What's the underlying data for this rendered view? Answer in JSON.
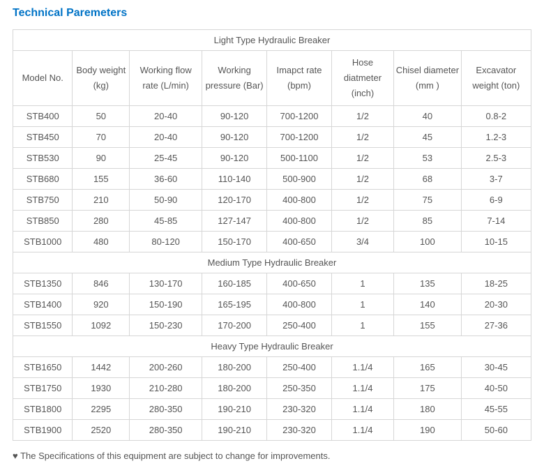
{
  "title": {
    "text": "Technical Paremeters",
    "color": "#0073c6"
  },
  "headers": [
    "Model No.",
    "Body weight (kg)",
    "Working flow rate (L/min)",
    "Working pressure (Bar)",
    "Imapct rate (bpm)",
    "Hose diatmeter (inch)",
    "Chisel diameter (mm )",
    "Excavator weight (ton)"
  ],
  "sections": [
    {
      "label": "Light Type Hydraulic Breaker",
      "rows": [
        [
          "STB400",
          "50",
          "20-40",
          "90-120",
          "700-1200",
          "1/2",
          "40",
          "0.8-2"
        ],
        [
          "STB450",
          "70",
          "20-40",
          "90-120",
          "700-1200",
          "1/2",
          "45",
          "1.2-3"
        ],
        [
          "STB530",
          "90",
          "25-45",
          "90-120",
          "500-1100",
          "1/2",
          "53",
          "2.5-3"
        ],
        [
          "STB680",
          "155",
          "36-60",
          "110-140",
          "500-900",
          "1/2",
          "68",
          "3-7"
        ],
        [
          "STB750",
          "210",
          "50-90",
          "120-170",
          "400-800",
          "1/2",
          "75",
          "6-9"
        ],
        [
          "STB850",
          "280",
          "45-85",
          "127-147",
          "400-800",
          "1/2",
          "85",
          "7-14"
        ],
        [
          "STB1000",
          "480",
          "80-120",
          "150-170",
          "400-650",
          "3/4",
          "100",
          "10-15"
        ]
      ]
    },
    {
      "label": "Medium Type Hydraulic Breaker",
      "rows": [
        [
          "STB1350",
          "846",
          "130-170",
          "160-185",
          "400-650",
          "1",
          "135",
          "18-25"
        ],
        [
          "STB1400",
          "920",
          "150-190",
          "165-195",
          "400-800",
          "1",
          "140",
          "20-30"
        ],
        [
          "STB1550",
          "1092",
          "150-230",
          "170-200",
          "250-400",
          "1",
          "155",
          "27-36"
        ]
      ]
    },
    {
      "label": "Heavy Type Hydraulic Breaker",
      "rows": [
        [
          "STB1650",
          "1442",
          "200-260",
          "180-200",
          "250-400",
          "1.1/4",
          "165",
          "30-45"
        ],
        [
          "STB1750",
          "1930",
          "210-280",
          "180-200",
          "250-350",
          "1.1/4",
          "175",
          "40-50"
        ],
        [
          "STB1800",
          "2295",
          "280-350",
          "190-210",
          "230-320",
          "1.1/4",
          "180",
          "45-55"
        ],
        [
          "STB1900",
          "2520",
          "280-350",
          "190-210",
          "230-320",
          "1.1/4",
          "190",
          "50-60"
        ]
      ]
    }
  ],
  "footnote": "♥ The Specifications of this equipment are subject to change for improvements.",
  "colors": {
    "border": "#d6d6d6",
    "text": "#555555",
    "title": "#0073c6"
  }
}
